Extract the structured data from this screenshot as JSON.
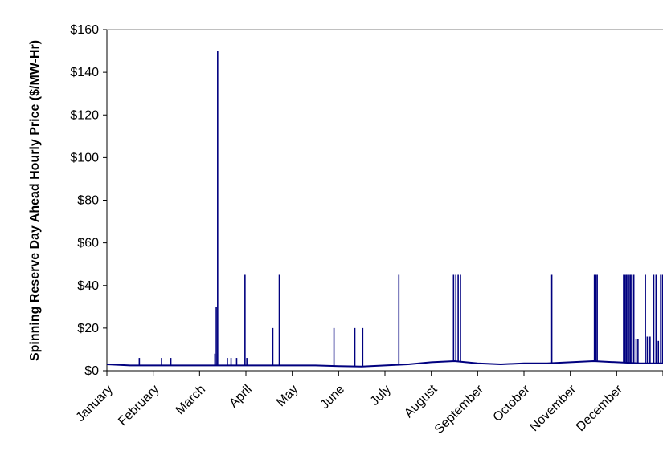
{
  "chart_data": {
    "type": "line",
    "title": "",
    "xlabel": "",
    "ylabel": "Spinning Reserve Day Ahead Hourly Price ($/MW-Hr)",
    "x_unit": "month",
    "xlim": [
      0,
      12
    ],
    "ylim": [
      0,
      160
    ],
    "y_ticks": [
      0,
      20,
      40,
      60,
      80,
      100,
      120,
      140,
      160
    ],
    "y_tick_labels": [
      "$0",
      "$20",
      "$40",
      "$60",
      "$80",
      "$100",
      "$120",
      "$140",
      "$160"
    ],
    "categories": [
      "January",
      "February",
      "March",
      "April",
      "May",
      "June",
      "July",
      "August",
      "September",
      "October",
      "November",
      "December"
    ],
    "grid": "horizontal top line only",
    "legend": "none",
    "series_color": "#00007f",
    "series": [
      {
        "baseline": [
          {
            "month": 0.0,
            "value": 3
          },
          {
            "month": 0.5,
            "value": 2.5
          },
          {
            "month": 1.0,
            "value": 2.5
          },
          {
            "month": 1.5,
            "value": 2.5
          },
          {
            "month": 2.0,
            "value": 2.5
          },
          {
            "month": 2.5,
            "value": 2.5
          },
          {
            "month": 3.0,
            "value": 2.5
          },
          {
            "month": 3.5,
            "value": 2.5
          },
          {
            "month": 4.0,
            "value": 2.5
          },
          {
            "month": 4.5,
            "value": 2.5
          },
          {
            "month": 5.0,
            "value": 2.2
          },
          {
            "month": 5.5,
            "value": 2.0
          },
          {
            "month": 6.0,
            "value": 2.5
          },
          {
            "month": 6.5,
            "value": 3.0
          },
          {
            "month": 7.0,
            "value": 4.0
          },
          {
            "month": 7.5,
            "value": 4.5
          },
          {
            "month": 8.0,
            "value": 3.5
          },
          {
            "month": 8.5,
            "value": 3.0
          },
          {
            "month": 9.0,
            "value": 3.5
          },
          {
            "month": 9.5,
            "value": 3.5
          },
          {
            "month": 10.0,
            "value": 4.0
          },
          {
            "month": 10.5,
            "value": 4.5
          },
          {
            "month": 11.0,
            "value": 4.0
          },
          {
            "month": 11.5,
            "value": 3.5
          },
          {
            "month": 12.0,
            "value": 3.5
          }
        ],
        "spikes": [
          {
            "month": 0.7,
            "value": 6
          },
          {
            "month": 1.18,
            "value": 6
          },
          {
            "month": 1.38,
            "value": 6
          },
          {
            "month": 2.33,
            "value": 8
          },
          {
            "month": 2.36,
            "value": 30
          },
          {
            "month": 2.39,
            "value": 150
          },
          {
            "month": 2.6,
            "value": 6
          },
          {
            "month": 2.68,
            "value": 6
          },
          {
            "month": 2.8,
            "value": 6
          },
          {
            "month": 2.98,
            "value": 45
          },
          {
            "month": 3.02,
            "value": 6
          },
          {
            "month": 3.58,
            "value": 20
          },
          {
            "month": 3.72,
            "value": 45
          },
          {
            "month": 4.9,
            "value": 20
          },
          {
            "month": 5.35,
            "value": 20
          },
          {
            "month": 5.52,
            "value": 20
          },
          {
            "month": 6.3,
            "value": 45
          },
          {
            "month": 7.48,
            "value": 45
          },
          {
            "month": 7.53,
            "value": 45
          },
          {
            "month": 7.58,
            "value": 45
          },
          {
            "month": 7.63,
            "value": 45
          },
          {
            "month": 9.6,
            "value": 45
          },
          {
            "month": 10.52,
            "value": 45
          },
          {
            "month": 10.55,
            "value": 45
          },
          {
            "month": 10.58,
            "value": 45
          },
          {
            "month": 11.15,
            "value": 45
          },
          {
            "month": 11.18,
            "value": 45
          },
          {
            "month": 11.21,
            "value": 45
          },
          {
            "month": 11.24,
            "value": 45
          },
          {
            "month": 11.27,
            "value": 45
          },
          {
            "month": 11.3,
            "value": 45
          },
          {
            "month": 11.33,
            "value": 45
          },
          {
            "month": 11.37,
            "value": 45
          },
          {
            "month": 11.42,
            "value": 15
          },
          {
            "month": 11.46,
            "value": 15
          },
          {
            "month": 11.62,
            "value": 45
          },
          {
            "month": 11.66,
            "value": 16
          },
          {
            "month": 11.72,
            "value": 16
          },
          {
            "month": 11.8,
            "value": 45
          },
          {
            "month": 11.85,
            "value": 45
          },
          {
            "month": 11.9,
            "value": 14
          },
          {
            "month": 11.95,
            "value": 45
          },
          {
            "month": 11.99,
            "value": 45
          }
        ]
      }
    ]
  }
}
